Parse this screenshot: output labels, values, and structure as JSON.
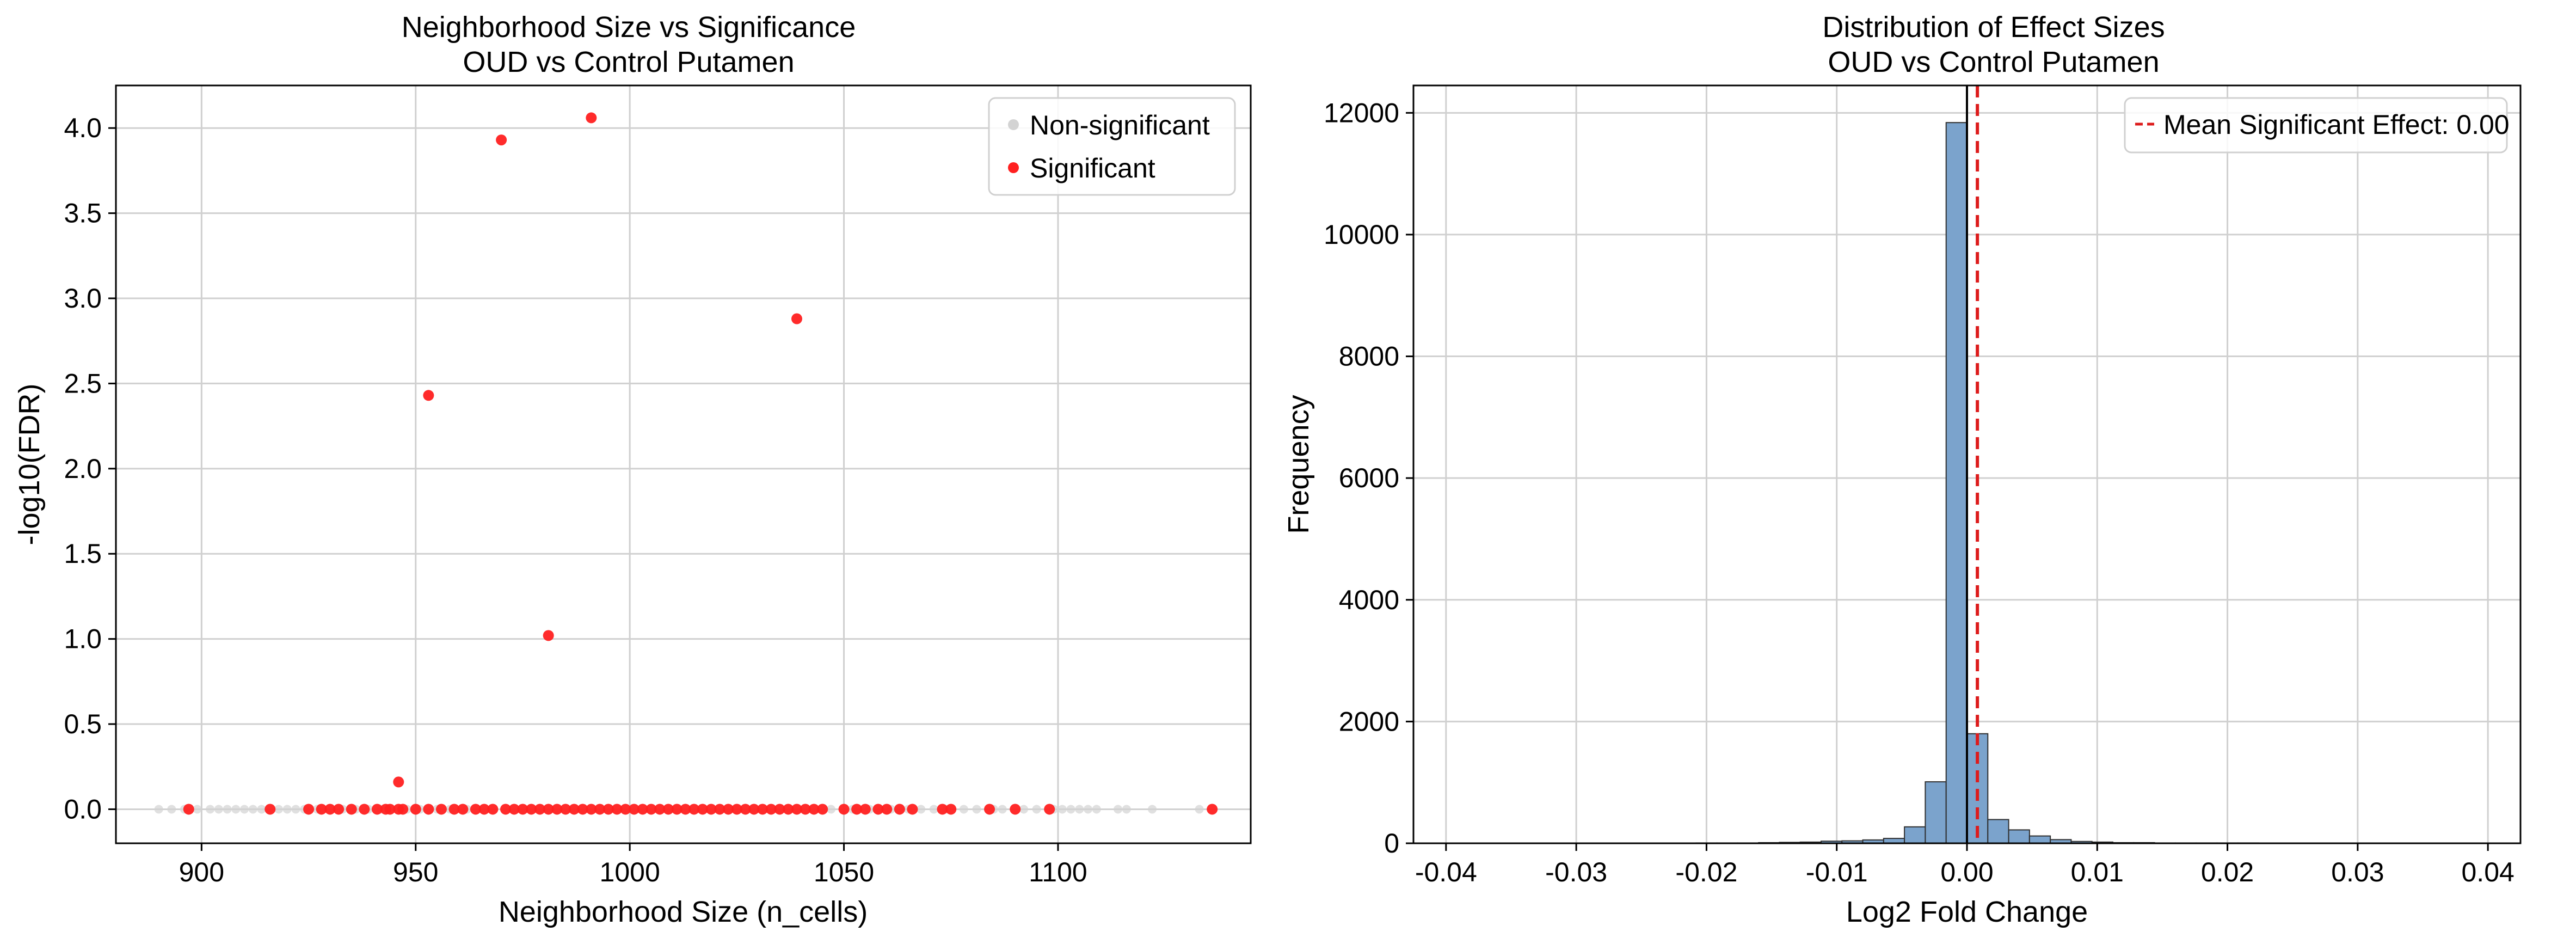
{
  "chart_data": [
    {
      "type": "scatter",
      "title": "Neighborhood Size vs Significance",
      "subtitle": "OUD vs Control Putamen",
      "xlabel": "Neighborhood Size (n_cells)",
      "ylabel": "-log10(FDR)",
      "xlim": [
        880,
        1145
      ],
      "ylim": [
        -0.2,
        4.25
      ],
      "xticks": [
        900,
        950,
        1000,
        1050,
        1100
      ],
      "yticks": [
        0.0,
        0.5,
        1.0,
        1.5,
        2.0,
        2.5,
        3.0,
        3.5,
        4.0
      ],
      "grid": true,
      "legend_position": "top-right",
      "series": [
        {
          "name": "Non-significant",
          "color": "#d3d3d3",
          "points": [
            [
              890,
              0
            ],
            [
              893,
              0
            ],
            [
              896,
              0
            ],
            [
              899,
              0
            ],
            [
              902,
              0
            ],
            [
              904,
              0
            ],
            [
              906,
              0
            ],
            [
              908,
              0
            ],
            [
              910,
              0
            ],
            [
              912,
              0
            ],
            [
              914,
              0
            ],
            [
              918,
              0
            ],
            [
              920,
              0
            ],
            [
              922,
              0
            ],
            [
              924,
              0
            ],
            [
              927,
              0
            ],
            [
              933,
              0
            ],
            [
              936,
              0
            ],
            [
              939,
              0
            ],
            [
              942,
              0
            ],
            [
              948,
              0
            ],
            [
              951,
              0
            ],
            [
              955,
              0
            ],
            [
              958,
              0
            ],
            [
              962,
              0
            ],
            [
              1047,
              0
            ],
            [
              1052,
              0
            ],
            [
              1056,
              0
            ],
            [
              1061,
              0
            ],
            [
              1065,
              0
            ],
            [
              1068,
              0
            ],
            [
              1071,
              0
            ],
            [
              1074,
              0
            ],
            [
              1078,
              0
            ],
            [
              1081,
              0
            ],
            [
              1085,
              0
            ],
            [
              1087,
              0
            ],
            [
              1092,
              0
            ],
            [
              1095,
              0
            ],
            [
              1099,
              0
            ],
            [
              1101,
              0
            ],
            [
              1103,
              0
            ],
            [
              1105,
              0
            ],
            [
              1107,
              0
            ],
            [
              1109,
              0
            ],
            [
              1114,
              0
            ],
            [
              1116,
              0
            ],
            [
              1122,
              0
            ],
            [
              1133,
              0
            ]
          ]
        },
        {
          "name": "Significant",
          "color": "#ff2020",
          "points": [
            [
              897,
              0
            ],
            [
              916,
              0
            ],
            [
              925,
              0
            ],
            [
              928,
              0
            ],
            [
              930,
              0
            ],
            [
              932,
              0
            ],
            [
              935,
              0
            ],
            [
              938,
              0
            ],
            [
              941,
              0
            ],
            [
              943,
              0
            ],
            [
              944,
              0
            ],
            [
              946,
              0
            ],
            [
              947,
              0
            ],
            [
              950,
              0
            ],
            [
              953,
              0
            ],
            [
              956,
              0
            ],
            [
              959,
              0
            ],
            [
              961,
              0
            ],
            [
              964,
              0
            ],
            [
              966,
              0
            ],
            [
              968,
              0
            ],
            [
              971,
              0
            ],
            [
              973,
              0
            ],
            [
              975,
              0
            ],
            [
              977,
              0
            ],
            [
              979,
              0
            ],
            [
              981,
              0
            ],
            [
              983,
              0
            ],
            [
              985,
              0
            ],
            [
              987,
              0
            ],
            [
              989,
              0
            ],
            [
              991,
              0
            ],
            [
              993,
              0
            ],
            [
              995,
              0
            ],
            [
              997,
              0
            ],
            [
              999,
              0
            ],
            [
              1001,
              0
            ],
            [
              1003,
              0
            ],
            [
              1005,
              0
            ],
            [
              1007,
              0
            ],
            [
              1009,
              0
            ],
            [
              1011,
              0
            ],
            [
              1013,
              0
            ],
            [
              1015,
              0
            ],
            [
              1017,
              0
            ],
            [
              1019,
              0
            ],
            [
              1021,
              0
            ],
            [
              1023,
              0
            ],
            [
              1025,
              0
            ],
            [
              1027,
              0
            ],
            [
              1029,
              0
            ],
            [
              1031,
              0
            ],
            [
              1033,
              0
            ],
            [
              1035,
              0
            ],
            [
              1037,
              0
            ],
            [
              1039,
              0
            ],
            [
              1041,
              0
            ],
            [
              1043,
              0
            ],
            [
              1045,
              0
            ],
            [
              1050,
              0
            ],
            [
              1053,
              0
            ],
            [
              1055,
              0
            ],
            [
              1058,
              0
            ],
            [
              1060,
              0
            ],
            [
              1063,
              0
            ],
            [
              1066,
              0
            ],
            [
              1073,
              0
            ],
            [
              1075,
              0
            ],
            [
              1084,
              0
            ],
            [
              1090,
              0
            ],
            [
              1098,
              0
            ],
            [
              1136,
              0
            ],
            [
              946,
              0.16
            ],
            [
              981,
              1.02
            ],
            [
              953,
              2.43
            ],
            [
              1039,
              2.88
            ],
            [
              970,
              3.93
            ],
            [
              991,
              4.06
            ]
          ]
        }
      ]
    },
    {
      "type": "bar",
      "subtype": "histogram",
      "title": "Distribution of Effect Sizes",
      "subtitle": "OUD vs Control Putamen",
      "xlabel": "Log2 Fold Change",
      "ylabel": "Frequency",
      "xlim": [
        -0.0425,
        0.0425
      ],
      "ylim": [
        0,
        12450
      ],
      "xticks": [
        -0.04,
        -0.03,
        -0.02,
        -0.01,
        0.0,
        0.01,
        0.02,
        0.03,
        0.04
      ],
      "xtick_labels": [
        "-0.04",
        "-0.03",
        "-0.02",
        "-0.01",
        "0.00",
        "0.01",
        "0.02",
        "0.03",
        "0.04"
      ],
      "yticks": [
        0,
        2000,
        4000,
        6000,
        8000,
        10000,
        12000
      ],
      "grid": true,
      "legend_position": "top-right",
      "bar_color": "#7ba3cc",
      "bin_edges": [
        -0.04,
        -0.0384,
        -0.0368,
        -0.0352,
        -0.0336,
        -0.032,
        -0.0304,
        -0.0288,
        -0.0272,
        -0.0256,
        -0.024,
        -0.0224,
        -0.0208,
        -0.0192,
        -0.0176,
        -0.016,
        -0.0144,
        -0.0128,
        -0.0112,
        -0.0096,
        -0.008,
        -0.0064,
        -0.0048,
        -0.0032,
        -0.0016,
        0.0,
        0.0016,
        0.0032,
        0.0048,
        0.0064,
        0.008,
        0.0096,
        0.0112,
        0.0128,
        0.0144,
        0.016,
        0.0176,
        0.0192,
        0.0208,
        0.0224,
        0.024,
        0.0256,
        0.0272,
        0.0288,
        0.0304,
        0.032,
        0.0336,
        0.0352,
        0.0368,
        0.0384,
        0.04
      ],
      "counts": [
        0,
        0,
        0,
        0,
        0,
        0,
        0,
        0,
        0,
        0,
        0,
        0,
        5,
        5,
        5,
        10,
        15,
        20,
        35,
        40,
        55,
        80,
        270,
        1010,
        11840,
        1800,
        390,
        220,
        120,
        60,
        30,
        20,
        10,
        10,
        5,
        5,
        5,
        5,
        5,
        0,
        0,
        0,
        0,
        0,
        0,
        0,
        0,
        0,
        0,
        0
      ],
      "reference_lines": [
        {
          "x": 0.0,
          "color": "#000000",
          "style": "solid"
        },
        {
          "name": "Mean Significant Effect: 0.00",
          "x": 0.0008,
          "color": "#dd1c1c",
          "style": "dashed"
        }
      ]
    }
  ]
}
